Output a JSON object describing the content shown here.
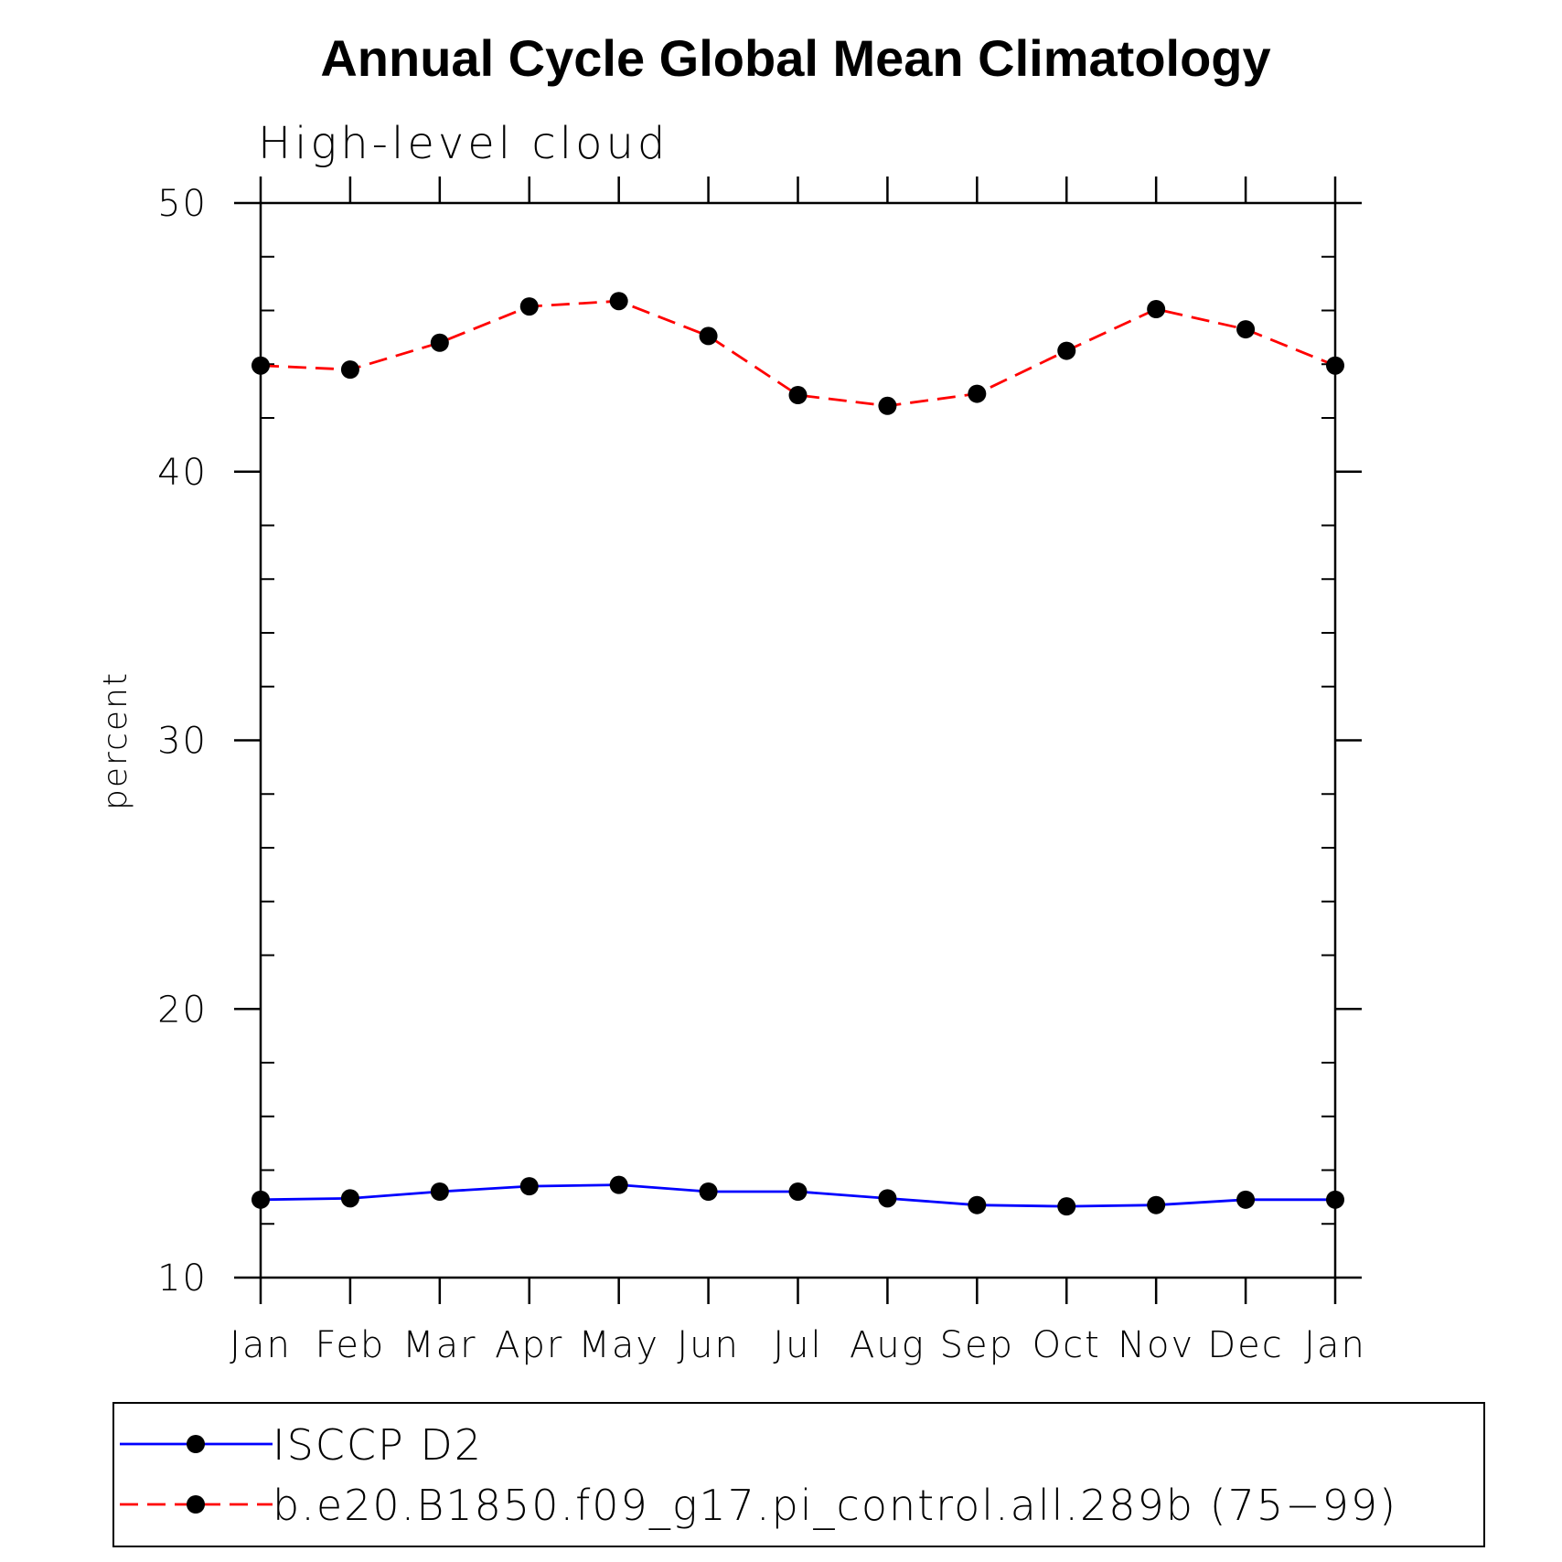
{
  "chart_data": {
    "type": "line",
    "title": "Annual Cycle Global Mean Climatology",
    "subtitle": "High-level cloud",
    "xlabel": "",
    "ylabel": "percent",
    "ylim": [
      10,
      50
    ],
    "yticks": [
      10,
      20,
      30,
      40,
      50
    ],
    "y_minor_step": 2,
    "categories": [
      "Jan",
      "Feb",
      "Mar",
      "Apr",
      "May",
      "Jun",
      "Jul",
      "Aug",
      "Sep",
      "Oct",
      "Nov",
      "Dec",
      "Jan"
    ],
    "grid": false,
    "legend_position": "bottom",
    "series": [
      {
        "name": "ISCCP D2",
        "color": "#0000ff",
        "line_style": "solid",
        "marker": "filled-circle",
        "values": [
          12.9,
          12.95,
          13.2,
          13.4,
          13.45,
          13.2,
          13.2,
          12.95,
          12.7,
          12.65,
          12.7,
          12.9,
          12.9
        ]
      },
      {
        "name": "b.e20.B1850.f09_g17.pi_control.all.289b (75-99)",
        "color": "#ff0000",
        "line_style": "dashed",
        "marker": "filled-circle",
        "values": [
          43.95,
          43.8,
          44.8,
          46.15,
          46.35,
          45.05,
          42.85,
          42.45,
          42.9,
          44.5,
          46.05,
          45.3,
          43.95
        ]
      }
    ]
  }
}
